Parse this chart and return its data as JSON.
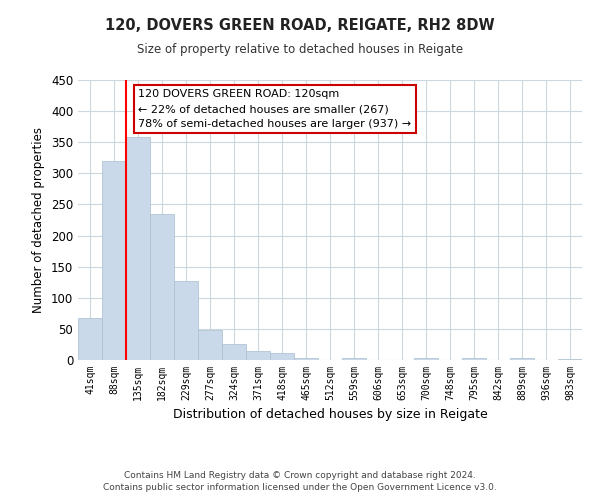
{
  "title1": "120, DOVERS GREEN ROAD, REIGATE, RH2 8DW",
  "title2": "Size of property relative to detached houses in Reigate",
  "xlabel": "Distribution of detached houses by size in Reigate",
  "ylabel": "Number of detached properties",
  "bin_labels": [
    "41sqm",
    "88sqm",
    "135sqm",
    "182sqm",
    "229sqm",
    "277sqm",
    "324sqm",
    "371sqm",
    "418sqm",
    "465sqm",
    "512sqm",
    "559sqm",
    "606sqm",
    "653sqm",
    "700sqm",
    "748sqm",
    "795sqm",
    "842sqm",
    "889sqm",
    "936sqm",
    "983sqm"
  ],
  "bin_values": [
    67,
    320,
    358,
    234,
    127,
    49,
    25,
    15,
    11,
    3,
    0,
    4,
    0,
    0,
    3,
    0,
    3,
    0,
    3,
    0,
    2
  ],
  "bar_color": "#c9d9ea",
  "bar_edge_color": "#a8becc",
  "red_line_x": 1.5,
  "annotation_title": "120 DOVERS GREEN ROAD: 120sqm",
  "annotation_line1": "← 22% of detached houses are smaller (267)",
  "annotation_line2": "78% of semi-detached houses are larger (937) →",
  "annotation_box_color": "#ffffff",
  "annotation_box_edge_color": "#cc0000",
  "ylim": [
    0,
    450
  ],
  "yticks": [
    0,
    50,
    100,
    150,
    200,
    250,
    300,
    350,
    400,
    450
  ],
  "footer1": "Contains HM Land Registry data © Crown copyright and database right 2024.",
  "footer2": "Contains public sector information licensed under the Open Government Licence v3.0.",
  "background_color": "#ffffff",
  "grid_color": "#ccd8e0"
}
